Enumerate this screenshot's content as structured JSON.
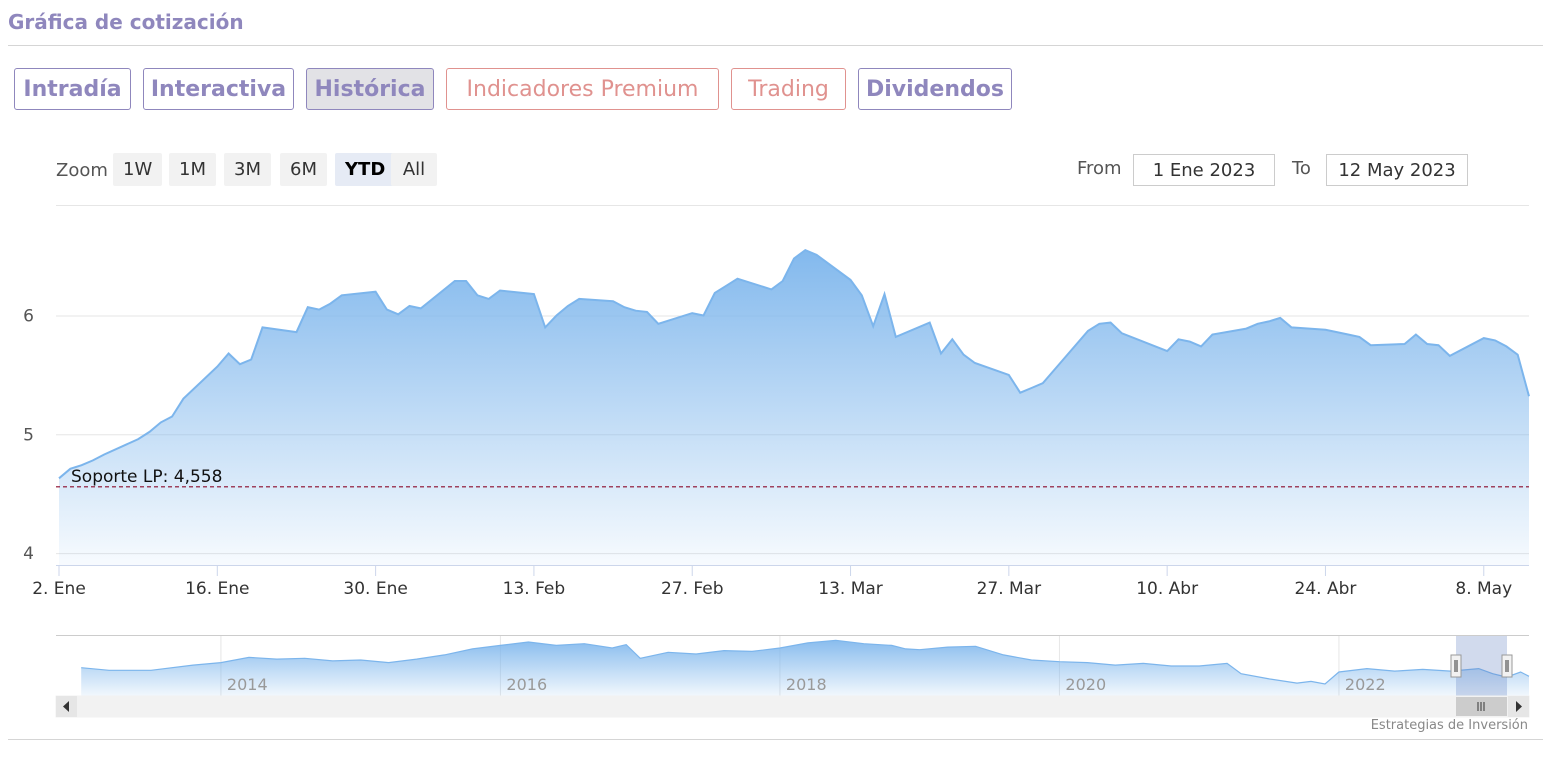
{
  "section": {
    "title": "Gráfica de cotización"
  },
  "tabs": [
    {
      "label": "Intradía",
      "active": false,
      "premium": false
    },
    {
      "label": "Interactiva",
      "active": false,
      "premium": false
    },
    {
      "label": "Histórica",
      "active": true,
      "premium": false
    },
    {
      "label": "Indicadores Premium",
      "active": false,
      "premium": true
    },
    {
      "label": "Trading",
      "active": false,
      "premium": true
    },
    {
      "label": "Dividendos",
      "active": false,
      "premium": false
    }
  ],
  "range_selector": {
    "zoom_label": "Zoom",
    "buttons": [
      "1W",
      "1M",
      "3M",
      "6M",
      "YTD",
      "All"
    ],
    "selected": "YTD",
    "from_label": "From",
    "from_value": "1 Ene 2023",
    "to_label": "To",
    "to_value": "12 May 2023"
  },
  "colors": {
    "accent": "#8f87bd",
    "premium": "#e0928f",
    "line": "#7cb5ec",
    "support": "#8b0a2a"
  },
  "chart_data": {
    "type": "area",
    "x_ticks": [
      "2. Ene",
      "16. Ene",
      "30. Ene",
      "13. Feb",
      "27. Feb",
      "13. Mar",
      "27. Mar",
      "10. Abr",
      "24. Abr",
      "8. May"
    ],
    "y_ticks": [
      "4",
      "5",
      "6"
    ],
    "ylim": [
      3.9,
      6.93
    ],
    "x_range": [
      "2023-01-02",
      "2023-05-12"
    ],
    "series": [
      {
        "values": [
          [
            "2023-01-02",
            4.63
          ],
          [
            "2023-01-03",
            4.71
          ],
          [
            "2023-01-04",
            4.74
          ],
          [
            "2023-01-05",
            4.78
          ],
          [
            "2023-01-06",
            4.83
          ],
          [
            "2023-01-09",
            4.96
          ],
          [
            "2023-01-10",
            5.02
          ],
          [
            "2023-01-11",
            5.1
          ],
          [
            "2023-01-12",
            5.15
          ],
          [
            "2023-01-13",
            5.3
          ],
          [
            "2023-01-16",
            5.57
          ],
          [
            "2023-01-17",
            5.68
          ],
          [
            "2023-01-18",
            5.59
          ],
          [
            "2023-01-19",
            5.63
          ],
          [
            "2023-01-20",
            5.9
          ],
          [
            "2023-01-23",
            5.86
          ],
          [
            "2023-01-24",
            6.07
          ],
          [
            "2023-01-25",
            6.05
          ],
          [
            "2023-01-26",
            6.1
          ],
          [
            "2023-01-27",
            6.17
          ],
          [
            "2023-01-30",
            6.2
          ],
          [
            "2023-01-31",
            6.05
          ],
          [
            "2023-02-01",
            6.01
          ],
          [
            "2023-02-02",
            6.08
          ],
          [
            "2023-02-03",
            6.06
          ],
          [
            "2023-02-06",
            6.29
          ],
          [
            "2023-02-07",
            6.29
          ],
          [
            "2023-02-08",
            6.17
          ],
          [
            "2023-02-09",
            6.14
          ],
          [
            "2023-02-10",
            6.21
          ],
          [
            "2023-02-13",
            6.18
          ],
          [
            "2023-02-14",
            5.9
          ],
          [
            "2023-02-15",
            6.0
          ],
          [
            "2023-02-16",
            6.08
          ],
          [
            "2023-02-17",
            6.14
          ],
          [
            "2023-02-20",
            6.12
          ],
          [
            "2023-02-21",
            6.07
          ],
          [
            "2023-02-22",
            6.04
          ],
          [
            "2023-02-23",
            6.03
          ],
          [
            "2023-02-24",
            5.93
          ],
          [
            "2023-02-27",
            6.02
          ],
          [
            "2023-02-28",
            6.0
          ],
          [
            "2023-03-01",
            6.19
          ],
          [
            "2023-03-02",
            6.25
          ],
          [
            "2023-03-03",
            6.31
          ],
          [
            "2023-03-06",
            6.22
          ],
          [
            "2023-03-07",
            6.29
          ],
          [
            "2023-03-08",
            6.48
          ],
          [
            "2023-03-09",
            6.55
          ],
          [
            "2023-03-10",
            6.51
          ],
          [
            "2023-03-13",
            6.3
          ],
          [
            "2023-03-14",
            6.17
          ],
          [
            "2023-03-15",
            5.91
          ],
          [
            "2023-03-16",
            6.18
          ],
          [
            "2023-03-17",
            5.82
          ],
          [
            "2023-03-20",
            5.94
          ],
          [
            "2023-03-21",
            5.68
          ],
          [
            "2023-03-22",
            5.8
          ],
          [
            "2023-03-23",
            5.67
          ],
          [
            "2023-03-24",
            5.6
          ],
          [
            "2023-03-27",
            5.5
          ],
          [
            "2023-03-28",
            5.35
          ],
          [
            "2023-03-29",
            5.39
          ],
          [
            "2023-03-30",
            5.43
          ],
          [
            "2023-03-31",
            5.54
          ],
          [
            "2023-04-03",
            5.87
          ],
          [
            "2023-04-04",
            5.93
          ],
          [
            "2023-04-05",
            5.94
          ],
          [
            "2023-04-06",
            5.85
          ],
          [
            "2023-04-10",
            5.7
          ],
          [
            "2023-04-11",
            5.8
          ],
          [
            "2023-04-12",
            5.78
          ],
          [
            "2023-04-13",
            5.74
          ],
          [
            "2023-04-14",
            5.84
          ],
          [
            "2023-04-17",
            5.89
          ],
          [
            "2023-04-18",
            5.93
          ],
          [
            "2023-04-19",
            5.95
          ],
          [
            "2023-04-20",
            5.98
          ],
          [
            "2023-04-21",
            5.9
          ],
          [
            "2023-04-24",
            5.88
          ],
          [
            "2023-04-25",
            5.86
          ],
          [
            "2023-04-26",
            5.84
          ],
          [
            "2023-04-27",
            5.82
          ],
          [
            "2023-04-28",
            5.75
          ],
          [
            "2023-05-01",
            5.76
          ],
          [
            "2023-05-02",
            5.84
          ],
          [
            "2023-05-03",
            5.76
          ],
          [
            "2023-05-04",
            5.75
          ],
          [
            "2023-05-05",
            5.66
          ],
          [
            "2023-05-08",
            5.81
          ],
          [
            "2023-05-09",
            5.79
          ],
          [
            "2023-05-10",
            5.74
          ],
          [
            "2023-05-11",
            5.67
          ],
          [
            "2023-05-12",
            5.32
          ]
        ]
      }
    ],
    "support_line": {
      "label": "Soporte LP: 4,558",
      "value": 4.558
    },
    "navigator": {
      "year_labels": [
        "2014",
        "2016",
        "2018",
        "2020",
        "2022"
      ],
      "year_range": [
        2012.82,
        2023.36
      ],
      "ylim": [
        3.0,
        10.0
      ],
      "values": [
        [
          2013.0,
          6.3
        ],
        [
          2013.2,
          6.0
        ],
        [
          2013.5,
          6.0
        ],
        [
          2013.8,
          6.6
        ],
        [
          2014.0,
          6.9
        ],
        [
          2014.2,
          7.5
        ],
        [
          2014.4,
          7.3
        ],
        [
          2014.6,
          7.4
        ],
        [
          2014.8,
          7.1
        ],
        [
          2015.0,
          7.2
        ],
        [
          2015.2,
          6.9
        ],
        [
          2015.4,
          7.3
        ],
        [
          2015.6,
          7.8
        ],
        [
          2015.8,
          8.5
        ],
        [
          2016.0,
          8.9
        ],
        [
          2016.2,
          9.3
        ],
        [
          2016.4,
          8.9
        ],
        [
          2016.6,
          9.1
        ],
        [
          2016.8,
          8.6
        ],
        [
          2016.9,
          9.0
        ],
        [
          2017.0,
          7.4
        ],
        [
          2017.2,
          8.1
        ],
        [
          2017.4,
          7.9
        ],
        [
          2017.6,
          8.3
        ],
        [
          2017.8,
          8.2
        ],
        [
          2018.0,
          8.6
        ],
        [
          2018.2,
          9.2
        ],
        [
          2018.4,
          9.5
        ],
        [
          2018.6,
          9.1
        ],
        [
          2018.8,
          8.9
        ],
        [
          2018.9,
          8.5
        ],
        [
          2019.0,
          8.4
        ],
        [
          2019.2,
          8.7
        ],
        [
          2019.4,
          8.8
        ],
        [
          2019.6,
          7.8
        ],
        [
          2019.8,
          7.2
        ],
        [
          2020.0,
          7.0
        ],
        [
          2020.2,
          6.9
        ],
        [
          2020.4,
          6.6
        ],
        [
          2020.6,
          6.8
        ],
        [
          2020.8,
          6.5
        ],
        [
          2021.0,
          6.5
        ],
        [
          2021.2,
          6.8
        ],
        [
          2021.3,
          5.6
        ],
        [
          2021.5,
          5.0
        ],
        [
          2021.7,
          4.5
        ],
        [
          2021.8,
          4.7
        ],
        [
          2021.9,
          4.4
        ],
        [
          2022.0,
          5.8
        ],
        [
          2022.2,
          6.2
        ],
        [
          2022.4,
          5.9
        ],
        [
          2022.6,
          6.1
        ],
        [
          2022.8,
          5.9
        ],
        [
          2023.0,
          6.2
        ],
        [
          2023.1,
          5.6
        ],
        [
          2023.2,
          5.2
        ],
        [
          2023.3,
          5.8
        ],
        [
          2023.36,
          5.3
        ]
      ]
    }
  },
  "credits": "Estrategias de Inversión"
}
